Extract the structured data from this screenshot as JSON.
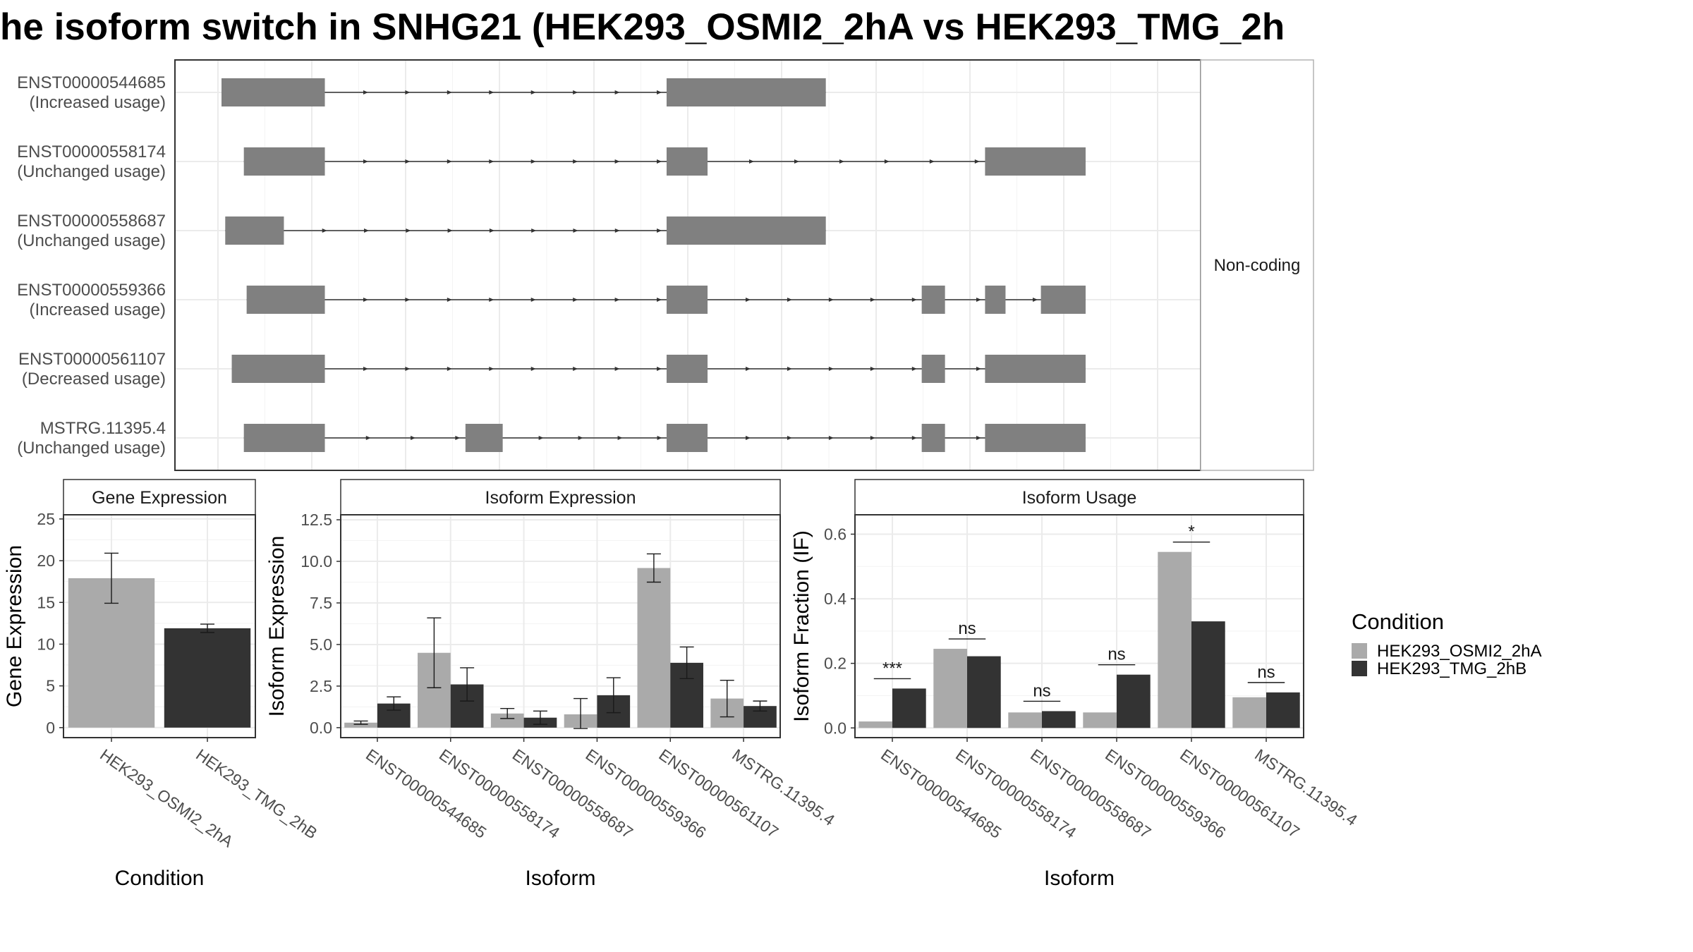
{
  "title": "he isoform switch in SNHG21 (HEK293_OSMI2_2hA vs HEK293_TMG_2h",
  "colors": {
    "condition_A": "#AAAAAA",
    "condition_B": "#333333",
    "exon": "#808080",
    "grid": "#EBEBEB",
    "border": "#333333",
    "strip_border": "#B3B3B3"
  },
  "legend": {
    "title": "Condition",
    "items": [
      "HEK293_OSMI2_2hA",
      "HEK293_TMG_2hB"
    ]
  },
  "chart_data": [
    {
      "type": "gene-structure",
      "strip_label": "Non-coding",
      "transcripts": [
        {
          "id": "ENST00000544685",
          "usage": "(Increased usage)",
          "exons": [
            [
              0.0,
              0.111
            ],
            [
              0.478,
              0.649
            ]
          ]
        },
        {
          "id": "ENST00000558174",
          "usage": "(Unchanged usage)",
          "exons": [
            [
              0.024,
              0.111
            ],
            [
              0.478,
              0.522
            ],
            [
              0.82,
              0.928
            ]
          ]
        },
        {
          "id": "ENST00000558687",
          "usage": "(Unchanged usage)",
          "exons": [
            [
              0.004,
              0.067
            ],
            [
              0.478,
              0.649
            ]
          ]
        },
        {
          "id": "ENST00000559366",
          "usage": "(Increased usage)",
          "exons": [
            [
              0.027,
              0.111
            ],
            [
              0.478,
              0.522
            ],
            [
              0.752,
              0.777
            ],
            [
              0.82,
              0.842
            ],
            [
              0.88,
              0.928
            ]
          ]
        },
        {
          "id": "ENST00000561107",
          "usage": "(Decreased usage)",
          "exons": [
            [
              0.011,
              0.111
            ],
            [
              0.478,
              0.522
            ],
            [
              0.752,
              0.777
            ],
            [
              0.82,
              0.928
            ]
          ]
        },
        {
          "id": "MSTRG.11395.4",
          "usage": "(Unchanged usage)",
          "exons": [
            [
              0.024,
              0.111
            ],
            [
              0.262,
              0.302
            ],
            [
              0.478,
              0.522
            ],
            [
              0.752,
              0.777
            ],
            [
              0.82,
              0.928
            ]
          ]
        }
      ]
    },
    {
      "type": "bar",
      "strip_title": "Gene Expression",
      "xlabel": "Condition",
      "ylabel": "Gene Expression",
      "ylim": [
        -1.2,
        25.5
      ],
      "yticks": [
        0,
        5,
        10,
        15,
        20,
        25
      ],
      "ytick_labels": [
        "0",
        "5",
        "10",
        "15",
        "20",
        "25"
      ],
      "categories": [
        "HEK293_OSMI2_2hA",
        "HEK293_TMG_2hB"
      ],
      "values": [
        17.9,
        11.9
      ],
      "errors": [
        [
          14.9,
          20.9
        ],
        [
          11.4,
          12.4
        ]
      ]
    },
    {
      "type": "bar",
      "strip_title": "Isoform Expression",
      "xlabel": "Isoform",
      "ylabel": "Isoform Expression",
      "ylim": [
        -0.6,
        12.8
      ],
      "yticks": [
        0,
        2.5,
        5,
        7.5,
        10,
        12.5
      ],
      "ytick_labels": [
        "0.0",
        "2.5",
        "5.0",
        "7.5",
        "10.0",
        "12.5"
      ],
      "categories": [
        "ENST00000544685",
        "ENST00000558174",
        "ENST00000558687",
        "ENST00000559366",
        "ENST00000561107",
        "MSTRG.11395.4"
      ],
      "series": [
        {
          "name": "HEK293_OSMI2_2hA",
          "values": [
            0.3,
            4.5,
            0.85,
            0.8,
            9.6,
            1.75
          ],
          "errors": [
            [
              0.2,
              0.4
            ],
            [
              2.4,
              6.6
            ],
            [
              0.55,
              1.15
            ],
            [
              -0.05,
              1.75
            ],
            [
              8.75,
              10.45
            ],
            [
              0.65,
              2.85
            ]
          ]
        },
        {
          "name": "HEK293_TMG_2hB",
          "values": [
            1.45,
            2.6,
            0.6,
            1.95,
            3.9,
            1.3
          ],
          "errors": [
            [
              1.05,
              1.85
            ],
            [
              1.6,
              3.6
            ],
            [
              0.2,
              1.0
            ],
            [
              0.9,
              3.0
            ],
            [
              2.95,
              4.85
            ],
            [
              1.0,
              1.6
            ]
          ]
        }
      ]
    },
    {
      "type": "bar",
      "strip_title": "Isoform Usage",
      "xlabel": "Isoform",
      "ylabel": "Isoform Fraction (IF)",
      "ylim": [
        -0.03,
        0.66
      ],
      "yticks": [
        0,
        0.2,
        0.4,
        0.6
      ],
      "ytick_labels": [
        "0.0",
        "0.2",
        "0.4",
        "0.6"
      ],
      "categories": [
        "ENST00000544685",
        "ENST00000558174",
        "ENST00000558687",
        "ENST00000559366",
        "ENST00000561107",
        "MSTRG.11395.4"
      ],
      "series": [
        {
          "name": "HEK293_OSMI2_2hA",
          "values": [
            0.02,
            0.245,
            0.048,
            0.048,
            0.545,
            0.095
          ]
        },
        {
          "name": "HEK293_TMG_2hB",
          "values": [
            0.122,
            0.222,
            0.052,
            0.165,
            0.33,
            0.11
          ]
        }
      ],
      "significance": [
        "***",
        "ns",
        "ns",
        "ns",
        "*",
        "ns"
      ]
    }
  ]
}
